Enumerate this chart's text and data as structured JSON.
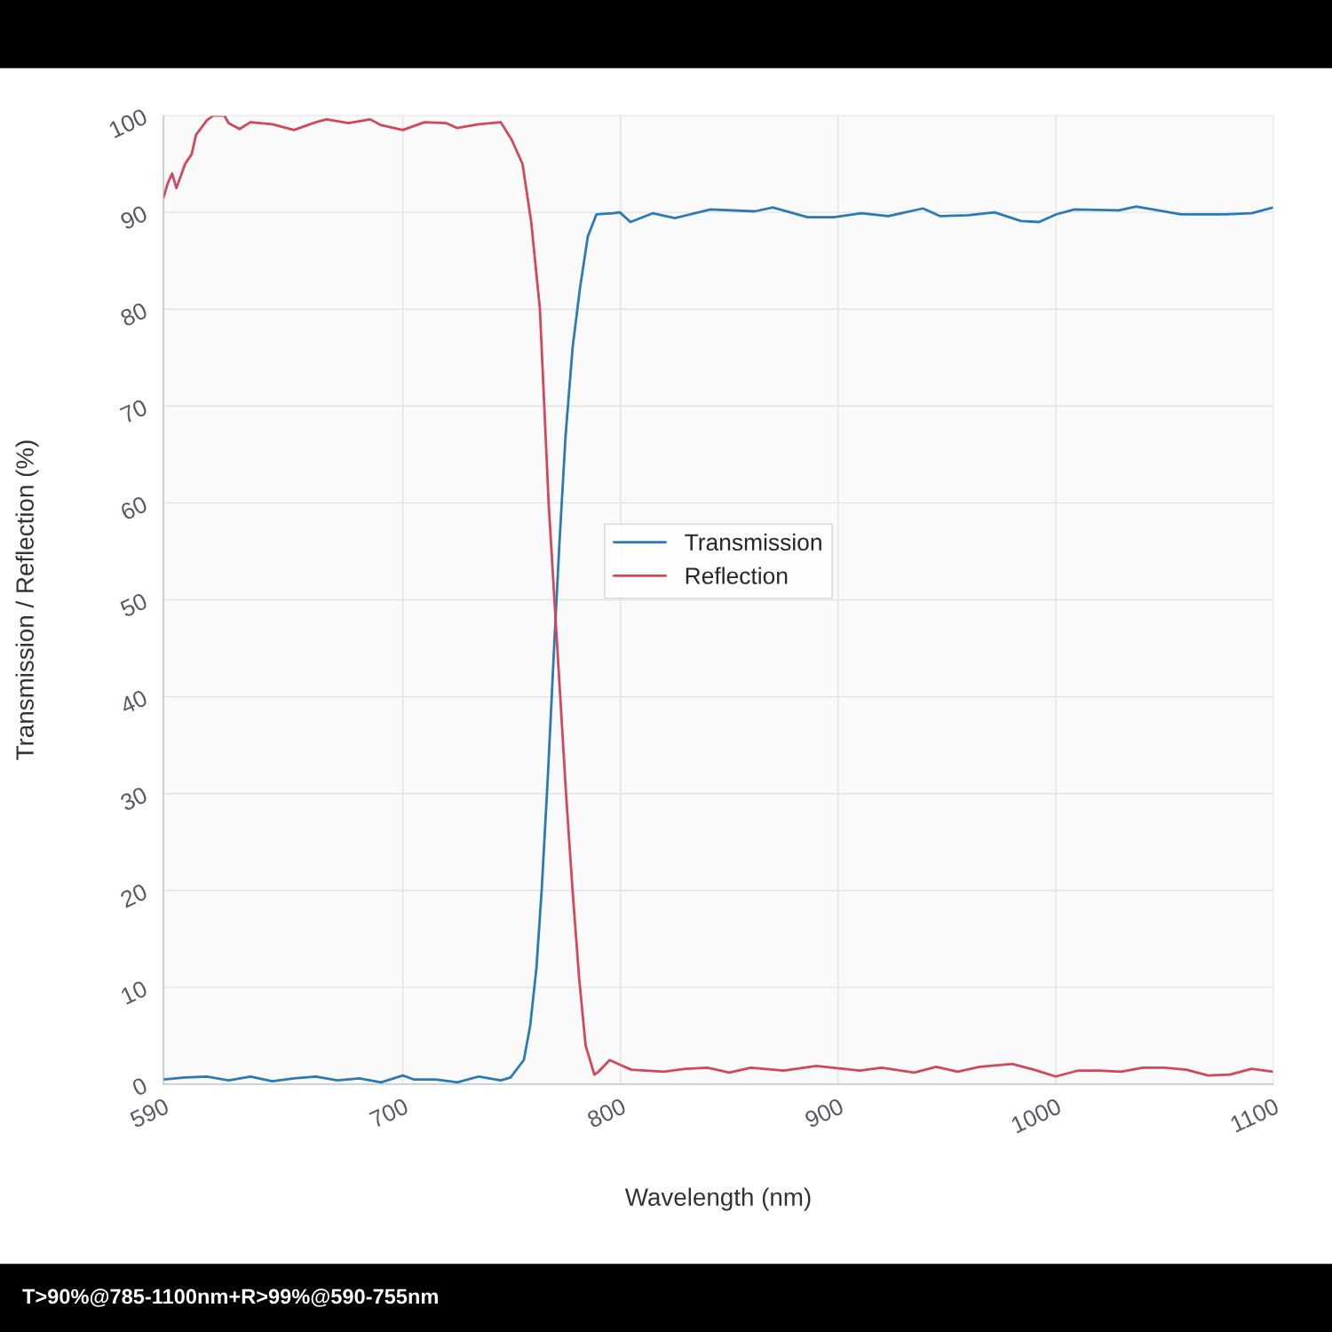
{
  "chart_data": {
    "type": "line",
    "xlabel": "Wavelength (nm)",
    "ylabel": "Transmission / Reflection (%)",
    "annotations": [
      "T>90%@785-1100nm+R>99%@590-755nm"
    ],
    "xlim": [
      590,
      1100
    ],
    "xticks": [
      590,
      700,
      800,
      900,
      1000,
      1100
    ],
    "ylim": [
      0,
      100
    ],
    "yticks": [
      0,
      10,
      20,
      30,
      40,
      50,
      60,
      70,
      80,
      90,
      100
    ],
    "grid": true,
    "legend": "center",
    "line_style": "solid",
    "marker": "none",
    "series": [
      {
        "name": "Transmission",
        "color": "#2a7ab8",
        "x": [
          590,
          600,
          610,
          620,
          630,
          640,
          650,
          660,
          670,
          680,
          690,
          700,
          705,
          715,
          725,
          735,
          745,
          749.5,
          755.6,
          758.5,
          761.4,
          763.8,
          766.7,
          769.5,
          772,
          774.8,
          778,
          781.3,
          785,
          789,
          796.4,
          799.7,
          804.6,
          814.8,
          825,
          841.3,
          861.7,
          870,
          886,
          898,
          910.7,
          923,
          939,
          947,
          959.6,
          971.9,
          984,
          992.3,
          1000.4,
          1008.6,
          1029,
          1037,
          1057.6,
          1078,
          1090,
          1100
        ],
        "values": [
          0.5,
          0.7,
          0.8,
          0.4,
          0.8,
          0.3,
          0.6,
          0.8,
          0.4,
          0.6,
          0.2,
          0.9,
          0.5,
          0.5,
          0.2,
          0.8,
          0.4,
          0.7,
          2.5,
          6,
          12,
          20,
          32,
          45,
          56,
          67,
          76,
          82,
          87.5,
          89.8,
          89.9,
          90,
          89,
          89.9,
          89.4,
          90.3,
          90.1,
          90.5,
          89.5,
          89.5,
          89.9,
          89.6,
          90.4,
          89.6,
          89.7,
          90.0,
          89.1,
          89.0,
          89.8,
          90.3,
          90.2,
          90.6,
          89.8,
          89.8,
          89.9,
          90.5
        ]
      },
      {
        "name": "Reflection",
        "color": "#d2475a",
        "x": [
          590,
          592,
          594,
          596,
          600,
          603,
          605,
          610,
          613,
          618,
          620,
          625,
          630,
          640,
          650,
          660,
          665,
          675,
          685,
          690,
          700,
          710,
          720,
          725,
          735,
          745,
          750,
          755,
          759,
          763,
          767,
          771,
          775,
          778,
          781,
          784,
          788,
          790,
          795,
          800,
          805,
          820,
          830,
          840,
          850,
          860,
          875,
          890,
          910,
          920,
          935,
          945,
          955,
          965,
          980,
          990,
          1000,
          1010,
          1020,
          1030,
          1040,
          1050,
          1060,
          1070,
          1080,
          1090,
          1100
        ],
        "values": [
          91.5,
          93,
          94,
          92.5,
          95,
          96,
          98,
          99.5,
          100,
          100,
          99.2,
          98.6,
          99.3,
          99.1,
          98.5,
          99.3,
          99.6,
          99.2,
          99.6,
          99,
          98.5,
          99.3,
          99.2,
          98.7,
          99.1,
          99.3,
          97.5,
          95,
          89,
          80,
          60,
          45,
          30,
          20,
          11,
          4,
          1,
          1.3,
          2.5,
          2.0,
          1.5,
          1.3,
          1.6,
          1.7,
          1.2,
          1.7,
          1.4,
          1.9,
          1.4,
          1.7,
          1.2,
          1.8,
          1.3,
          1.8,
          2.1,
          1.5,
          0.8,
          1.4,
          1.4,
          1.3,
          1.7,
          1.7,
          1.5,
          0.9,
          1.0,
          1.6,
          1.3
        ]
      }
    ]
  }
}
